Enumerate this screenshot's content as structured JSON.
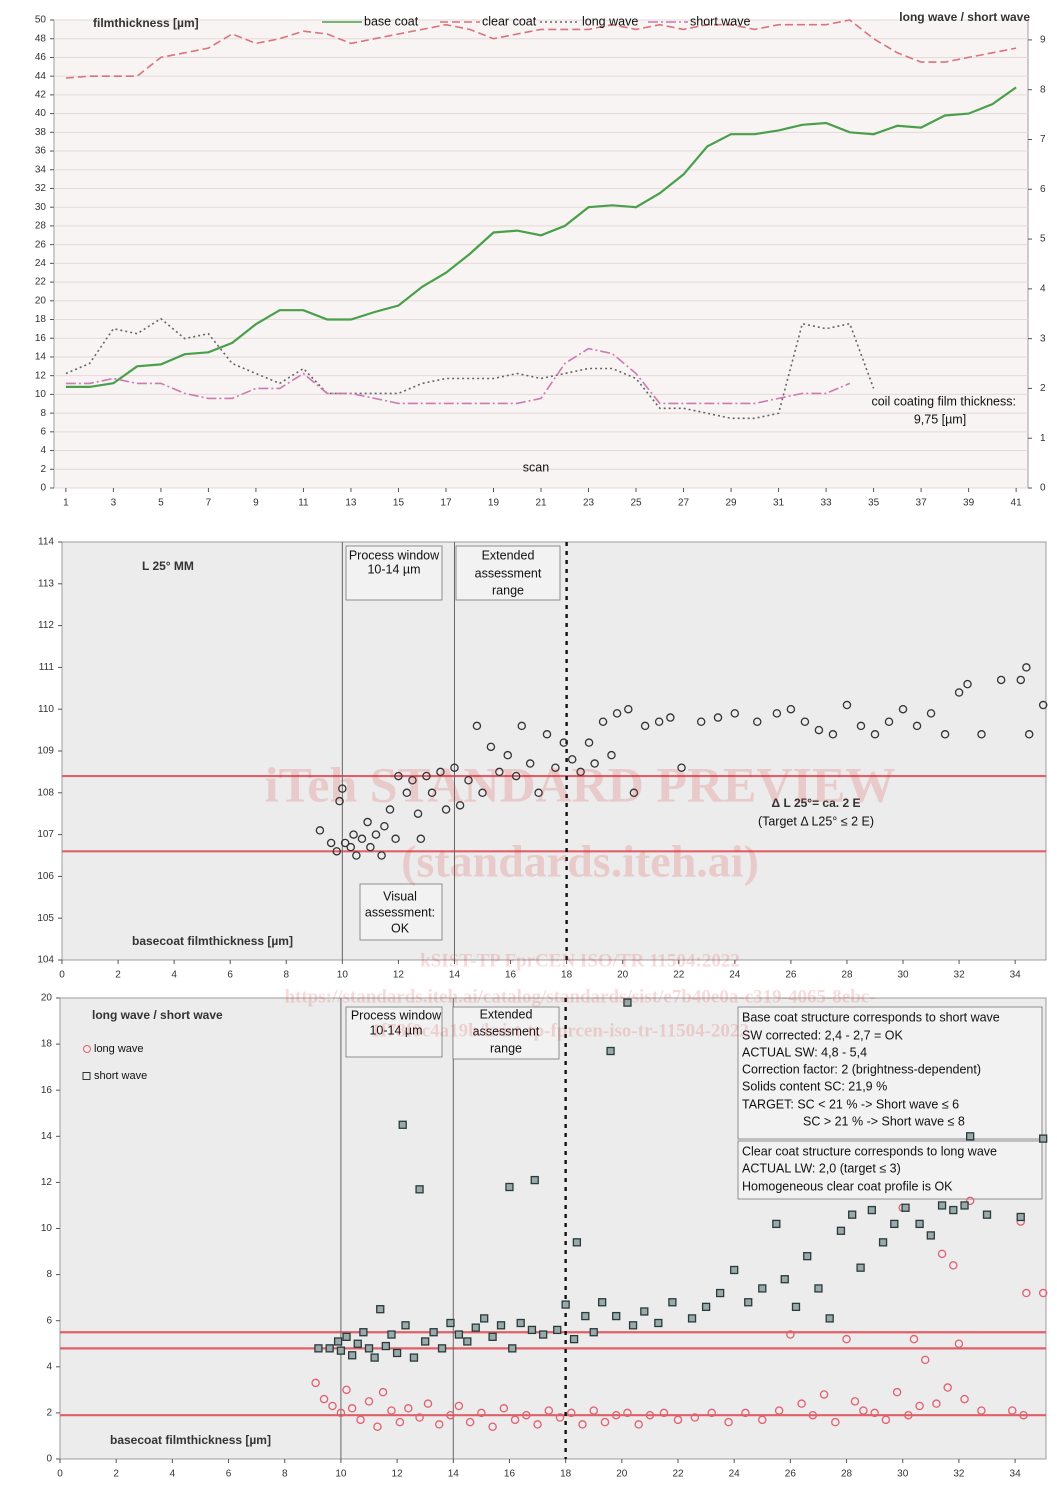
{
  "chart_data": [
    {
      "type": "line",
      "x": [
        1,
        2,
        3,
        4,
        5,
        6,
        7,
        8,
        9,
        10,
        11,
        12,
        13,
        14,
        15,
        16,
        17,
        18,
        19,
        20,
        21,
        22,
        23,
        24,
        25,
        26,
        27,
        28,
        29,
        30,
        31,
        32,
        33,
        34,
        35,
        36,
        37,
        38,
        39,
        40,
        41
      ],
      "xlim": [
        0.5,
        41.5
      ],
      "xticks": [
        1,
        3,
        5,
        7,
        9,
        11,
        13,
        15,
        17,
        19,
        21,
        23,
        25,
        27,
        29,
        31,
        33,
        35,
        37,
        39,
        41
      ],
      "ylim": [
        0,
        50
      ],
      "yticks": [
        0,
        2,
        4,
        6,
        8,
        10,
        12,
        14,
        16,
        18,
        20,
        22,
        24,
        26,
        28,
        30,
        32,
        34,
        36,
        38,
        40,
        42,
        44,
        46,
        48,
        50
      ],
      "y2lim": [
        0,
        9.4
      ],
      "y2ticks": [
        0,
        1,
        2,
        3,
        4,
        5,
        6,
        7,
        8,
        9
      ],
      "grid": true,
      "series": [
        {
          "name": "base coat",
          "color": "#4aa04a",
          "style": "solid",
          "values": [
            10.8,
            10.8,
            11.2,
            13,
            13.2,
            14.3,
            14.5,
            15.5,
            17.5,
            19,
            19,
            18,
            18,
            18.8,
            19.5,
            21.5,
            23,
            25,
            27.3,
            27.5,
            27,
            28,
            30,
            30.2,
            30,
            31.5,
            33.5,
            36.5,
            37.8,
            37.8,
            38.2,
            38.8,
            39,
            38,
            37.8,
            38.7,
            38.5,
            39.8,
            40,
            41,
            42.8
          ]
        },
        {
          "name": "clear coat",
          "color": "#d9747a",
          "style": "dashed",
          "values": [
            43.8,
            44,
            44,
            44,
            46,
            46.5,
            47,
            48.5,
            47.5,
            48,
            48.8,
            48.5,
            47.5,
            48,
            48.5,
            49,
            49.5,
            49,
            48,
            48.5,
            49,
            49,
            49,
            49.5,
            49,
            49.5,
            49,
            49.5,
            49.5,
            49,
            49.5,
            49.5,
            49.5,
            50,
            48,
            46.5,
            45.5,
            45.5,
            46,
            46.5,
            47
          ]
        },
        {
          "name": "long wave",
          "color": "#666666",
          "style": "dotted",
          "axis": "y2",
          "values": [
            2.3,
            2.5,
            3.2,
            3.1,
            3.4,
            3.0,
            3.1,
            2.5,
            2.3,
            2.1,
            2.4,
            1.9,
            1.9,
            1.9,
            1.9,
            2.1,
            2.2,
            2.2,
            2.2,
            2.3,
            2.2,
            2.3,
            2.4,
            2.4,
            2.2,
            1.6,
            1.6,
            1.5,
            1.4,
            1.4,
            1.5,
            3.3,
            3.2,
            3.3,
            2.0,
            null,
            null,
            null,
            null,
            null,
            null
          ]
        },
        {
          "name": "short wave",
          "color": "#cc7ab0",
          "style": "dashdot",
          "axis": "y2",
          "values": [
            2.1,
            2.1,
            2.2,
            2.1,
            2.1,
            1.9,
            1.8,
            1.8,
            2.0,
            2.0,
            2.3,
            1.9,
            1.9,
            1.8,
            1.7,
            1.7,
            1.7,
            1.7,
            1.7,
            1.7,
            1.8,
            2.5,
            2.8,
            2.7,
            2.3,
            1.7,
            1.7,
            1.7,
            1.7,
            1.7,
            1.8,
            1.9,
            1.9,
            2.1,
            null,
            null,
            null,
            null,
            null,
            null,
            null
          ]
        }
      ],
      "annotations": [
        "filmthickness [µm]",
        "long wave / short wave",
        "coil coating film thickness:",
        "9,75 [µm]",
        "scan"
      ]
    },
    {
      "type": "scatter",
      "x": [
        9.2,
        9.6,
        9.8,
        9.9,
        10.0,
        10.1,
        10.3,
        10.4,
        10.5,
        10.7,
        10.9,
        11.0,
        11.2,
        11.4,
        11.5,
        11.7,
        11.9,
        12.0,
        12.3,
        12.5,
        12.7,
        12.8,
        13.0,
        13.2,
        13.5,
        13.7,
        14.0,
        14.2,
        14.5,
        14.8,
        15.0,
        15.3,
        15.6,
        15.9,
        16.2,
        16.4,
        16.7,
        17.0,
        17.3,
        17.6,
        17.9,
        18.2,
        18.5,
        18.8,
        19.0,
        19.3,
        19.6,
        19.8,
        20.2,
        20.4,
        20.8,
        21.3,
        21.7,
        22.1,
        22.8,
        23.4,
        24.0,
        24.8,
        25.5,
        26.0,
        26.5,
        27.0,
        27.5,
        28.0,
        28.5,
        29.0,
        29.5,
        30.0,
        30.5,
        31.0,
        31.5,
        32.0,
        32.3,
        32.8,
        33.5,
        34.2,
        34.4,
        34.5,
        35.0
      ],
      "values": [
        107.1,
        106.8,
        106.6,
        107.8,
        108.1,
        106.8,
        106.7,
        107.0,
        106.5,
        106.9,
        107.3,
        106.7,
        107.0,
        106.5,
        107.2,
        107.6,
        106.9,
        108.4,
        108.0,
        108.3,
        107.5,
        106.9,
        108.4,
        108.0,
        108.5,
        107.6,
        108.6,
        107.7,
        108.3,
        109.6,
        108.0,
        109.1,
        108.5,
        108.9,
        108.4,
        109.6,
        108.7,
        108.0,
        109.4,
        108.6,
        109.2,
        108.8,
        108.5,
        109.2,
        108.7,
        109.7,
        108.9,
        109.9,
        110.0,
        108.0,
        109.6,
        109.7,
        109.8,
        108.6,
        109.7,
        109.8,
        109.9,
        109.7,
        109.9,
        110.0,
        109.7,
        109.5,
        109.4,
        110.1,
        109.6,
        109.4,
        109.7,
        110.0,
        109.6,
        109.9,
        109.4,
        110.4,
        110.6,
        109.4,
        110.7,
        110.7,
        111.0,
        109.4,
        110.1
      ],
      "color": "#333333",
      "marker": "circle",
      "xlim": [
        0,
        35.1
      ],
      "xticks": [
        0,
        2,
        4,
        6,
        8,
        10,
        12,
        14,
        16,
        18,
        20,
        22,
        24,
        26,
        28,
        30,
        32,
        34
      ],
      "ylim": [
        104,
        114
      ],
      "yticks": [
        104,
        105,
        106,
        107,
        108,
        109,
        110,
        111,
        112,
        113,
        114
      ],
      "hlines": [
        108.4,
        106.6
      ],
      "hline_color": "#e0606a",
      "vlines": [
        10,
        14,
        18
      ],
      "vline_styles": [
        "solid",
        "solid",
        "dotted"
      ],
      "annotations": [
        "L 25° MM",
        "Process window",
        "10-14 µm",
        "Extended",
        "assessment",
        "range",
        "Visual",
        "assessment:",
        "OK",
        "Δ L 25°= ca. 2  E",
        "(Target Δ L25° ≤ 2 E)",
        "basecoat filmthickness [µm]"
      ]
    },
    {
      "type": "scatter",
      "xlim": [
        0,
        35.1
      ],
      "xticks": [
        0,
        2,
        4,
        6,
        8,
        10,
        12,
        14,
        16,
        18,
        20,
        22,
        24,
        26,
        28,
        30,
        32,
        34
      ],
      "ylim": [
        0,
        20
      ],
      "yticks": [
        0,
        2,
        4,
        6,
        8,
        10,
        12,
        14,
        16,
        18,
        20
      ],
      "series": [
        {
          "name": "long wave",
          "color": "#e06070",
          "marker": "circle",
          "x": [
            9.1,
            9.4,
            9.7,
            10.0,
            10.2,
            10.4,
            10.7,
            11.0,
            11.3,
            11.5,
            11.8,
            12.1,
            12.4,
            12.8,
            13.1,
            13.5,
            13.9,
            14.2,
            14.6,
            15.0,
            15.4,
            15.8,
            16.2,
            16.6,
            17.0,
            17.4,
            17.8,
            18.2,
            18.6,
            19.0,
            19.4,
            19.8,
            20.2,
            20.6,
            21.0,
            21.5,
            22.0,
            22.6,
            23.2,
            23.8,
            24.4,
            25.0,
            25.6,
            26.0,
            26.4,
            26.8,
            27.2,
            27.6,
            28.0,
            28.3,
            28.6,
            29.0,
            29.4,
            29.8,
            30.0,
            30.2,
            30.4,
            30.6,
            30.8,
            31.2,
            31.4,
            31.6,
            31.8,
            32.0,
            32.2,
            32.4,
            32.8,
            33.9,
            34.2,
            34.3,
            34.4,
            35.0
          ],
          "values": [
            3.3,
            2.6,
            2.3,
            2.0,
            3.0,
            2.2,
            1.7,
            2.5,
            1.4,
            2.9,
            2.1,
            1.6,
            2.2,
            1.8,
            2.4,
            1.5,
            1.9,
            2.3,
            1.6,
            2.0,
            1.4,
            2.2,
            1.7,
            1.9,
            1.5,
            2.1,
            1.8,
            2.0,
            1.5,
            2.1,
            1.6,
            1.9,
            2.0,
            1.5,
            1.9,
            2.0,
            1.7,
            1.8,
            2.0,
            1.6,
            2.0,
            1.7,
            2.1,
            5.4,
            2.4,
            1.9,
            2.8,
            1.6,
            5.2,
            2.5,
            2.1,
            2.0,
            1.7,
            2.9,
            10.9,
            1.9,
            5.2,
            2.3,
            4.3,
            2.4,
            8.9,
            3.1,
            8.4,
            5.0,
            2.6,
            11.2,
            2.1,
            2.1,
            10.3,
            1.9,
            7.2,
            7.2
          ]
        },
        {
          "name": "short wave",
          "color": "#2a3a3a",
          "marker": "square",
          "x": [
            9.2,
            9.6,
            9.9,
            10.0,
            10.2,
            10.4,
            10.6,
            10.8,
            11.0,
            11.2,
            11.4,
            11.6,
            11.8,
            12.0,
            12.2,
            12.3,
            12.6,
            12.8,
            13.0,
            13.3,
            13.6,
            13.9,
            14.2,
            14.5,
            14.8,
            15.1,
            15.4,
            15.7,
            16.0,
            16.1,
            16.4,
            16.8,
            16.9,
            17.2,
            17.7,
            18.0,
            18.3,
            18.4,
            18.7,
            19.0,
            19.3,
            19.6,
            19.8,
            20.2,
            20.4,
            20.8,
            21.3,
            21.8,
            22.5,
            23.0,
            23.5,
            24.0,
            24.5,
            25.0,
            25.5,
            25.8,
            26.2,
            26.6,
            27.0,
            27.4,
            27.8,
            28.2,
            28.5,
            28.9,
            29.3,
            29.7,
            30.1,
            30.6,
            31.0,
            31.4,
            31.8,
            32.2,
            32.4,
            33.0,
            34.2,
            35.0
          ],
          "values": [
            4.8,
            4.8,
            5.1,
            4.7,
            5.3,
            4.5,
            5.0,
            5.5,
            4.8,
            4.4,
            6.5,
            4.9,
            5.4,
            4.6,
            14.5,
            5.8,
            4.4,
            11.7,
            5.1,
            5.5,
            4.8,
            5.9,
            5.4,
            5.1,
            5.7,
            6.1,
            5.3,
            5.8,
            11.8,
            4.8,
            5.9,
            5.6,
            12.1,
            5.4,
            5.6,
            6.7,
            5.2,
            9.4,
            6.2,
            5.5,
            6.8,
            17.7,
            6.2,
            19.8,
            5.8,
            6.4,
            5.9,
            6.8,
            6.1,
            6.6,
            7.2,
            8.2,
            6.8,
            7.4,
            10.2,
            7.8,
            6.6,
            8.8,
            7.4,
            6.1,
            9.9,
            10.6,
            8.3,
            10.8,
            9.4,
            10.2,
            10.9,
            10.2,
            9.7,
            11.0,
            10.8,
            11.0,
            14.0,
            10.6,
            10.5,
            13.9
          ]
        }
      ],
      "hlines": [
        5.5,
        4.8,
        1.9
      ],
      "hline_color": "#e0606a",
      "vlines": [
        10,
        14,
        18
      ],
      "vline_styles": [
        "solid",
        "solid",
        "dotted"
      ],
      "annotations": [
        "long wave / short wave",
        "Process window",
        "10-14 µm",
        "Extended",
        "assessment",
        "range",
        "Base coat structure corresponds to short wave",
        "SW corrected: 2,4 - 2,7 = OK",
        "ACTUAL  SW: 4,8 - 5,4",
        "Correction factor: 2 (brightness-dependent)",
        "Solids content SC: 21,9    %",
        "TARGET: SC < 21 % -> Short wave ≤ 6",
        "SC > 21 % -> Short wave ≤ 8",
        "Clear coat structure corresponds to long wave",
        "ACTUAL  LW: 2,0 (target ≤ 3)",
        "Homogeneous clear coat profile is OK",
        "basecoat filmthickness [µm]"
      ]
    }
  ],
  "watermark": [
    "iTeh STANDARD PREVIEW",
    "(standards.iteh.ai)",
    "kSIST-TP FprCEN ISO/TR 11504:2022",
    "https://standards.iteh.ai/catalog/standards/sist/e7b40e0a-c319-4065-8ebc-",
    "1f78f0c4a19b/ksist-tp-fprcen-iso-tr-11504-2022"
  ]
}
